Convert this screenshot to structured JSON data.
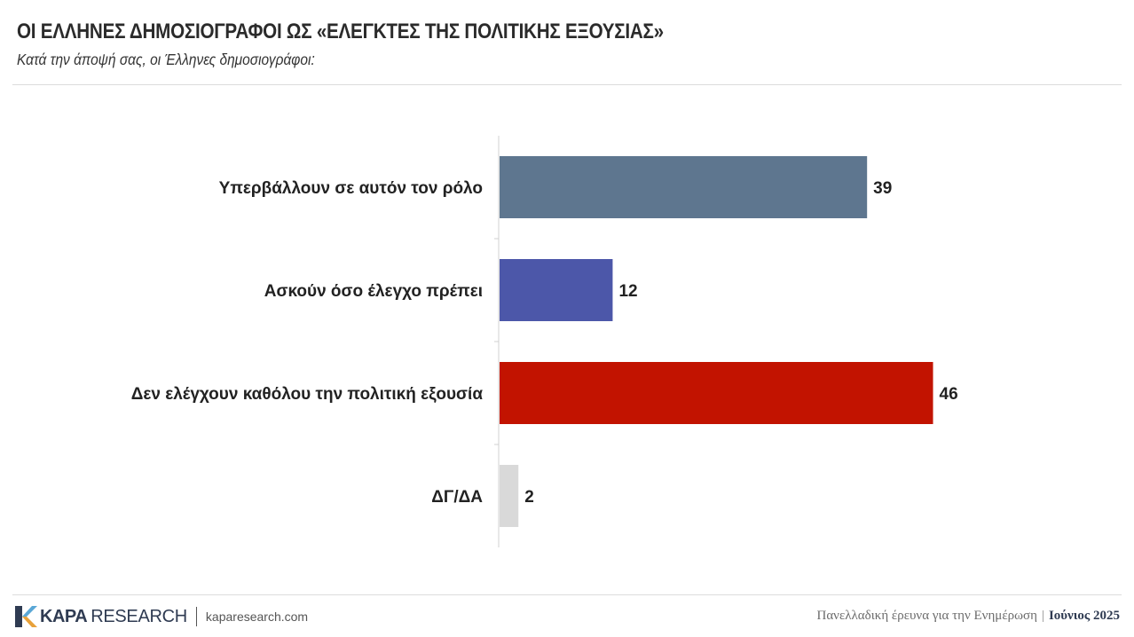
{
  "header": {
    "title": "ΟΙ ΕΛΛΗΝΕΣ ΔΗΜΟΣΙΟΓΡΑΦΟΙ ΩΣ «ΕΛΕΓΚΤΕΣ ΤΗΣ ΠΟΛΙΤΙΚΗΣ ΕΞΟΥΣΙΑΣ»",
    "subtitle": "Κατά την άποψή σας, οι Έλληνες δημοσιογράφοι:"
  },
  "chart_data": {
    "type": "bar",
    "orientation": "horizontal",
    "categories": [
      "Υπερβάλλουν σε αυτόν τον ρόλο",
      "Ασκούν όσο έλεγχο πρέπει",
      "Δεν ελέγχουν καθόλου την πολιτική εξουσία",
      "ΔΓ/ΔΑ"
    ],
    "values": [
      39,
      12,
      46,
      2
    ],
    "colors": [
      "#5e768f",
      "#4c57a9",
      "#c21300",
      "#d9d9d9"
    ],
    "title": "",
    "xlabel": "",
    "ylabel": "",
    "xlim": [
      0,
      50
    ],
    "grid": false,
    "legend": "none"
  },
  "footer": {
    "logo_kapa": "KAPA",
    "logo_research": "RESEARCH",
    "website": "kaparesearch.com",
    "survey": "Πανελλαδική έρευνα για την Ενημέρωση",
    "separator": "|",
    "date": "Ιούνιος 2025",
    "logo_colors": [
      "#2f3b52",
      "#e8a13a",
      "#5aa7d6"
    ]
  }
}
